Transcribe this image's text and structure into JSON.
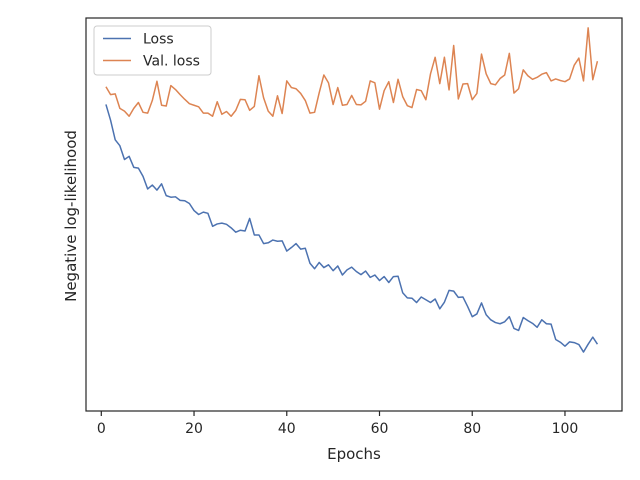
{
  "chart_data": {
    "type": "line",
    "xlabel": "Epochs",
    "ylabel": "Negative log-likelihood",
    "xlim": [
      -3.3,
      112.3
    ],
    "ylim": [
      0,
      1
    ],
    "xticks": [
      0,
      20,
      40,
      60,
      80,
      100
    ],
    "y_tick_labels_shown": false,
    "grid": false,
    "legend": "top-left",
    "series": [
      {
        "name": "Loss",
        "color": "#4c72b0",
        "x": [
          1,
          2,
          3,
          4,
          5,
          6,
          7,
          8,
          9,
          10,
          11,
          12,
          13,
          14,
          15,
          16,
          17,
          18,
          19,
          20,
          21,
          22,
          23,
          24,
          25,
          26,
          27,
          28,
          29,
          30,
          31,
          32,
          33,
          34,
          35,
          36,
          37,
          38,
          39,
          40,
          41,
          42,
          43,
          44,
          45,
          46,
          47,
          48,
          49,
          50,
          51,
          52,
          53,
          54,
          55,
          56,
          57,
          58,
          59,
          60,
          61,
          62,
          63,
          64,
          65,
          66,
          67,
          68,
          69,
          70,
          71,
          72,
          73,
          74,
          75,
          76,
          77,
          78,
          79,
          80,
          81,
          82,
          83,
          84,
          85,
          86,
          87,
          88,
          89,
          90,
          91,
          92,
          93,
          94,
          95,
          96,
          97,
          98,
          99,
          100,
          101,
          102,
          103,
          104,
          105,
          106,
          107
        ],
        "y": [
          0.78,
          0.74,
          0.69,
          0.675,
          0.64,
          0.648,
          0.62,
          0.618,
          0.597,
          0.565,
          0.575,
          0.562,
          0.578,
          0.548,
          0.544,
          0.545,
          0.536,
          0.535,
          0.528,
          0.51,
          0.5,
          0.506,
          0.503,
          0.47,
          0.476,
          0.478,
          0.475,
          0.466,
          0.455,
          0.46,
          0.458,
          0.49,
          0.448,
          0.448,
          0.426,
          0.428,
          0.435,
          0.432,
          0.433,
          0.407,
          0.416,
          0.426,
          0.412,
          0.414,
          0.376,
          0.362,
          0.378,
          0.365,
          0.372,
          0.357,
          0.369,
          0.346,
          0.359,
          0.366,
          0.355,
          0.347,
          0.356,
          0.34,
          0.346,
          0.332,
          0.342,
          0.327,
          0.342,
          0.343,
          0.301,
          0.288,
          0.287,
          0.276,
          0.29,
          0.283,
          0.276,
          0.285,
          0.26,
          0.277,
          0.307,
          0.305,
          0.289,
          0.29,
          0.266,
          0.24,
          0.247,
          0.275,
          0.245,
          0.232,
          0.225,
          0.222,
          0.227,
          0.24,
          0.21,
          0.205,
          0.238,
          0.23,
          0.223,
          0.213,
          0.232,
          0.222,
          0.221,
          0.182,
          0.175,
          0.165,
          0.176,
          0.174,
          0.169,
          0.15,
          0.17,
          0.188,
          0.17
        ]
      },
      {
        "name": "Val. loss",
        "color": "#dd8452",
        "x": [
          1,
          2,
          3,
          4,
          5,
          6,
          7,
          8,
          9,
          10,
          11,
          12,
          13,
          14,
          15,
          16,
          17,
          18,
          19,
          20,
          21,
          22,
          23,
          24,
          25,
          26,
          27,
          28,
          29,
          30,
          31,
          32,
          33,
          34,
          35,
          36,
          37,
          38,
          39,
          40,
          41,
          42,
          43,
          44,
          45,
          46,
          47,
          48,
          49,
          50,
          51,
          52,
          53,
          54,
          55,
          56,
          57,
          58,
          59,
          60,
          61,
          62,
          63,
          64,
          65,
          66,
          67,
          68,
          69,
          70,
          71,
          72,
          73,
          74,
          75,
          76,
          77,
          78,
          79,
          80,
          81,
          82,
          83,
          84,
          85,
          86,
          87,
          88,
          89,
          90,
          91,
          92,
          93,
          94,
          95,
          96,
          97,
          98,
          99,
          100,
          101,
          102,
          103,
          104,
          105,
          106,
          107
        ],
        "y": [
          0.825,
          0.805,
          0.807,
          0.77,
          0.763,
          0.75,
          0.77,
          0.785,
          0.76,
          0.758,
          0.79,
          0.839,
          0.778,
          0.776,
          0.828,
          0.818,
          0.805,
          0.793,
          0.782,
          0.778,
          0.774,
          0.758,
          0.758,
          0.75,
          0.787,
          0.755,
          0.762,
          0.75,
          0.765,
          0.793,
          0.792,
          0.765,
          0.775,
          0.853,
          0.797,
          0.763,
          0.75,
          0.802,
          0.757,
          0.84,
          0.823,
          0.82,
          0.808,
          0.79,
          0.758,
          0.76,
          0.81,
          0.855,
          0.835,
          0.78,
          0.823,
          0.778,
          0.78,
          0.803,
          0.78,
          0.779,
          0.788,
          0.84,
          0.835,
          0.768,
          0.815,
          0.838,
          0.785,
          0.844,
          0.8,
          0.777,
          0.772,
          0.818,
          0.815,
          0.792,
          0.858,
          0.9,
          0.833,
          0.9,
          0.817,
          0.93,
          0.794,
          0.832,
          0.833,
          0.792,
          0.808,
          0.908,
          0.858,
          0.833,
          0.83,
          0.846,
          0.855,
          0.91,
          0.809,
          0.82,
          0.868,
          0.853,
          0.844,
          0.849,
          0.857,
          0.861,
          0.84,
          0.845,
          0.841,
          0.838,
          0.845,
          0.88,
          0.898,
          0.84,
          0.975,
          0.843,
          0.89
        ]
      }
    ]
  }
}
